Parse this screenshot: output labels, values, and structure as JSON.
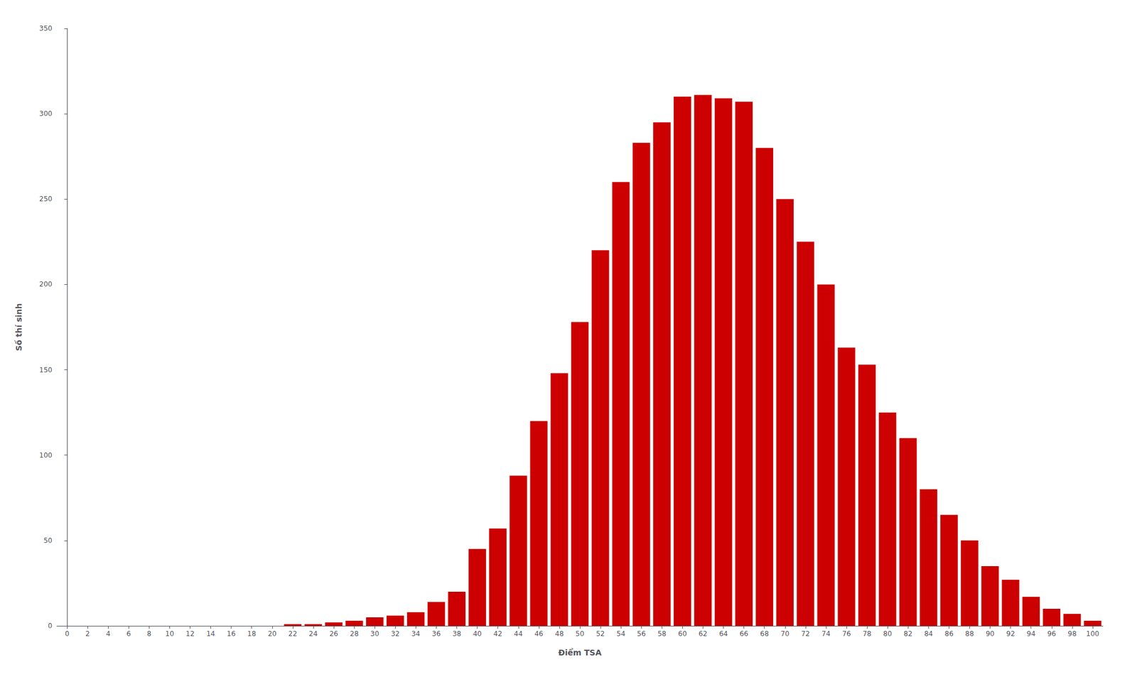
{
  "chart_data": {
    "type": "bar",
    "x": [
      0,
      2,
      4,
      6,
      8,
      10,
      12,
      14,
      16,
      18,
      20,
      22,
      24,
      26,
      28,
      30,
      32,
      34,
      36,
      38,
      40,
      42,
      44,
      46,
      48,
      50,
      52,
      54,
      56,
      58,
      60,
      62,
      64,
      66,
      68,
      70,
      72,
      74,
      76,
      78,
      80,
      82,
      84,
      86,
      88,
      90,
      92,
      94,
      96,
      98,
      100
    ],
    "values": [
      0,
      0,
      0,
      0,
      0,
      0,
      0,
      0,
      0,
      0,
      0,
      1,
      1,
      2,
      3,
      5,
      6,
      8,
      14,
      20,
      45,
      57,
      88,
      120,
      148,
      178,
      220,
      260,
      283,
      295,
      310,
      311,
      309,
      307,
      280,
      250,
      225,
      200,
      163,
      153,
      125,
      110,
      80,
      65,
      50,
      35,
      27,
      17,
      10,
      7,
      3
    ],
    "color": "#cc0000",
    "xlabel": "Điểm TSA",
    "ylabel": "Số thí sinh",
    "xlim": [
      -1,
      101
    ],
    "xticks": [
      0,
      2,
      4,
      6,
      8,
      10,
      12,
      14,
      16,
      18,
      20,
      22,
      24,
      26,
      28,
      30,
      32,
      34,
      36,
      38,
      40,
      42,
      44,
      46,
      48,
      50,
      52,
      54,
      56,
      58,
      60,
      62,
      64,
      66,
      68,
      70,
      72,
      74,
      76,
      78,
      80,
      82,
      84,
      86,
      88,
      90,
      92,
      94,
      96,
      98,
      100
    ],
    "ylim": [
      0,
      350
    ],
    "yticks": [
      0,
      50,
      100,
      150,
      200,
      250,
      300,
      350
    ],
    "grid": false
  }
}
